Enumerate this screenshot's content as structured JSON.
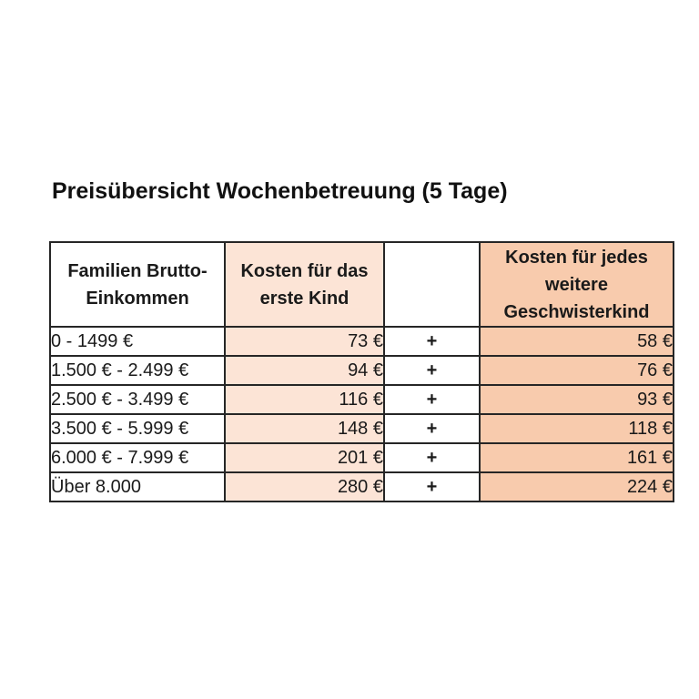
{
  "page": {
    "title": "Preisübersicht Wochenbetreuung (5 Tage)"
  },
  "table": {
    "headers": {
      "income": "Familien Brutto-\nEinkommen",
      "first_child": "Kosten für das\nerste Kind",
      "operator": "",
      "sibling": "Kosten für jedes\nweitere\nGeschwisterkind"
    },
    "rows": [
      {
        "income": "0 - 1499 €",
        "first_child": "73 €",
        "operator": "+",
        "sibling": "58 €"
      },
      {
        "income": "1.500 € - 2.499 €",
        "first_child": "94 €",
        "operator": "+",
        "sibling": "76 €"
      },
      {
        "income": "2.500 € - 3.499 €",
        "first_child": "116 €",
        "operator": "+",
        "sibling": "93 €"
      },
      {
        "income": "3.500 € - 5.999 €",
        "first_child": "148 €",
        "operator": "+",
        "sibling": "118 €"
      },
      {
        "income": "6.000 € - 7.999 €",
        "first_child": "201 €",
        "operator": "+",
        "sibling": "161 €"
      },
      {
        "income": "Über 8.000",
        "first_child": "280 €",
        "operator": "+",
        "sibling": "224 €"
      }
    ]
  },
  "colors": {
    "first_child_bg": "#fce4d6",
    "sibling_bg": "#f8cbad",
    "border": "#262626",
    "text": "#1a1a1a"
  }
}
